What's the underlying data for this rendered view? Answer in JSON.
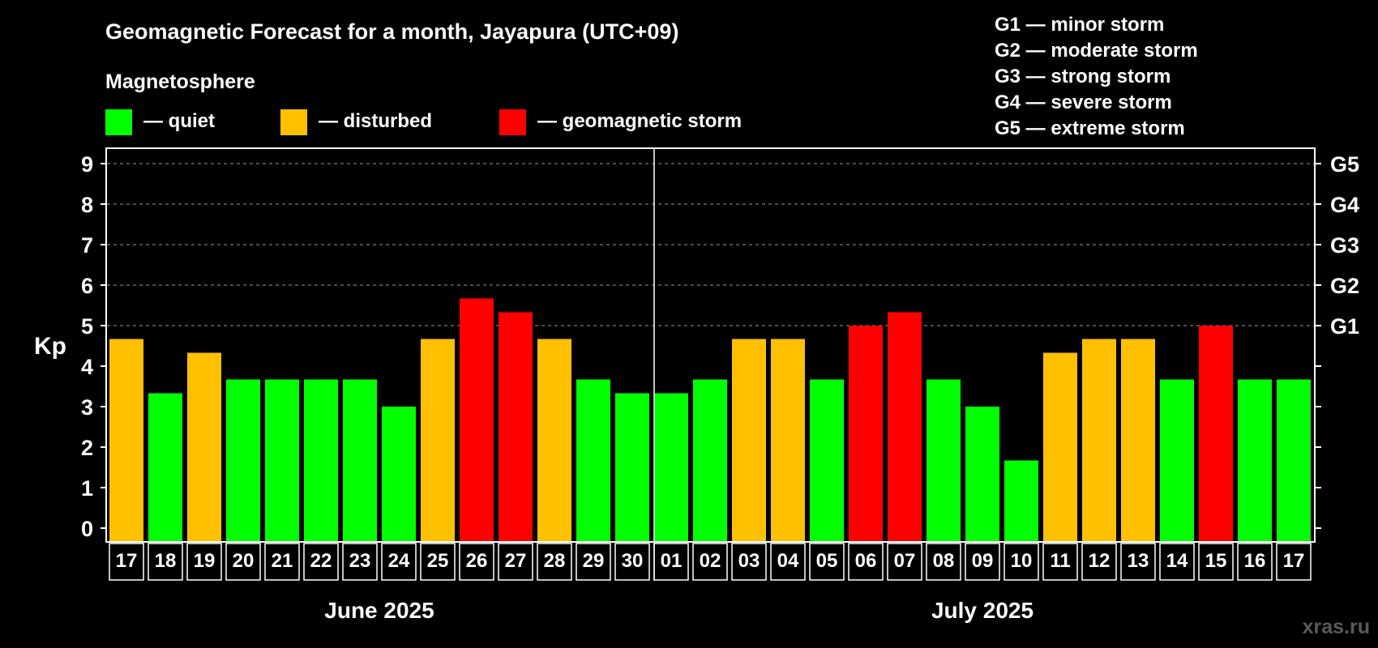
{
  "chart_data": {
    "type": "bar",
    "title": "Geomagnetic Forecast for a month, Jayapura (UTC+09)",
    "legend_title": "Magnetosphere",
    "legend": [
      {
        "label": "— quiet",
        "color": "#00ff00"
      },
      {
        "label": "— disturbed",
        "color": "#ffc000"
      },
      {
        "label": "— geomagnetic storm",
        "color": "#ff0000"
      }
    ],
    "storm_scale": [
      "G1 — minor storm",
      "G2 — moderate storm",
      "G3 — strong storm",
      "G4 — severe storm",
      "G5 — extreme storm"
    ],
    "ylabel": "Kp",
    "ylim": [
      0,
      9
    ],
    "yticks": [
      "0",
      "1",
      "2",
      "3",
      "4",
      "5",
      "6",
      "7",
      "8",
      "9"
    ],
    "right_ticks": [
      {
        "value": 5,
        "label": "G1"
      },
      {
        "value": 6,
        "label": "G2"
      },
      {
        "value": 7,
        "label": "G3"
      },
      {
        "value": 8,
        "label": "G4"
      },
      {
        "value": 9,
        "label": "G5"
      }
    ],
    "months": [
      {
        "label": "June 2025",
        "count": 14
      },
      {
        "label": "July 2025",
        "count": 17
      }
    ],
    "categories": [
      "17",
      "18",
      "19",
      "20",
      "21",
      "22",
      "23",
      "24",
      "25",
      "26",
      "27",
      "28",
      "29",
      "30",
      "01",
      "02",
      "03",
      "04",
      "05",
      "06",
      "07",
      "08",
      "09",
      "10",
      "11",
      "12",
      "13",
      "14",
      "15",
      "16",
      "17"
    ],
    "values": [
      4.67,
      3.33,
      4.33,
      3.67,
      3.67,
      3.67,
      3.67,
      3.0,
      4.67,
      5.67,
      5.33,
      4.67,
      3.67,
      3.33,
      3.33,
      3.67,
      4.67,
      4.67,
      3.67,
      5.0,
      5.33,
      3.67,
      3.0,
      1.67,
      4.33,
      4.67,
      4.67,
      3.67,
      5.0,
      3.67,
      3.67
    ],
    "colors": [
      "#ffc000",
      "#00ff00",
      "#ffc000",
      "#00ff00",
      "#00ff00",
      "#00ff00",
      "#00ff00",
      "#00ff00",
      "#ffc000",
      "#ff0000",
      "#ff0000",
      "#ffc000",
      "#00ff00",
      "#00ff00",
      "#00ff00",
      "#00ff00",
      "#ffc000",
      "#ffc000",
      "#00ff00",
      "#ff0000",
      "#ff0000",
      "#00ff00",
      "#00ff00",
      "#00ff00",
      "#ffc000",
      "#ffc000",
      "#ffc000",
      "#00ff00",
      "#ff0000",
      "#00ff00",
      "#00ff00"
    ],
    "grid": true
  },
  "watermark": "xras.ru"
}
